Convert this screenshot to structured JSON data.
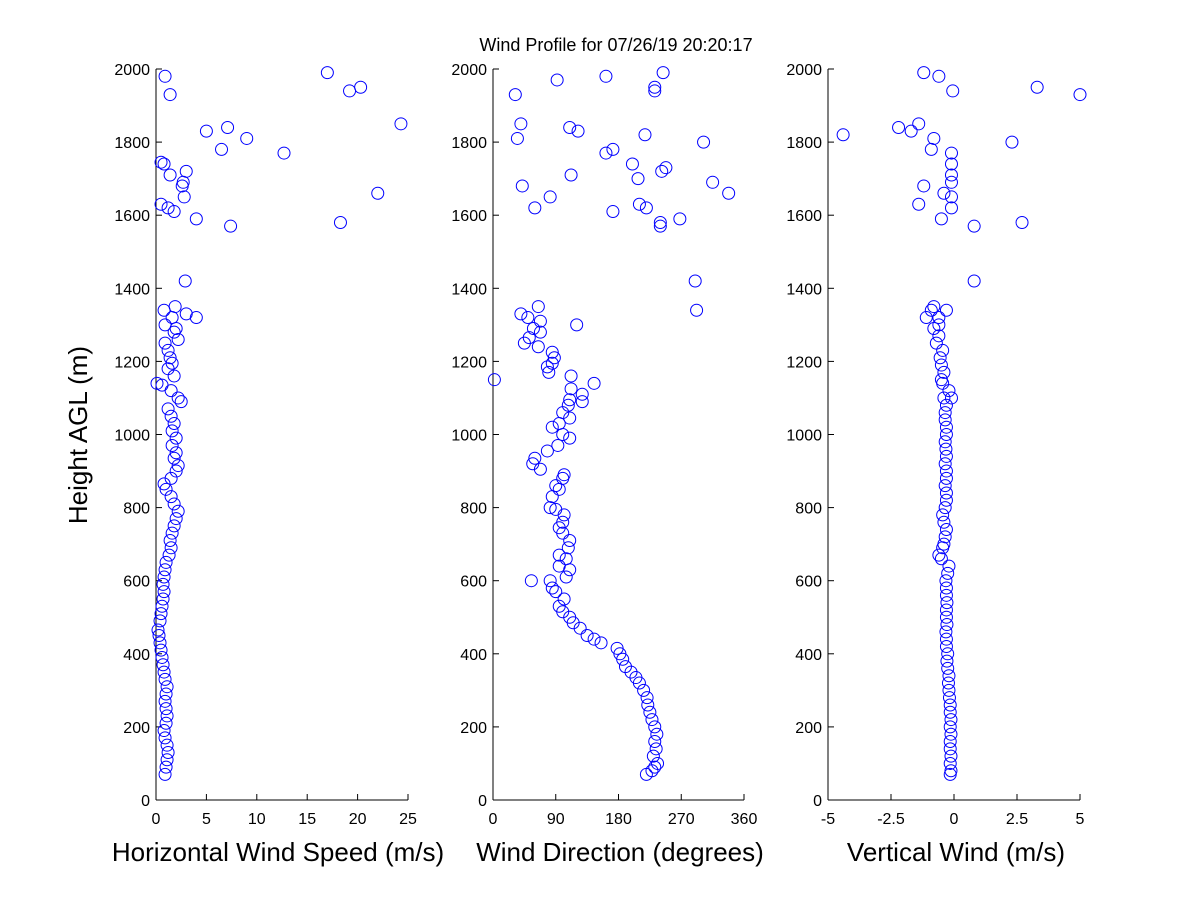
{
  "figure": {
    "title": "Wind Profile for  07/26/19 20:20:17",
    "marker_color": "#0000ff"
  },
  "chart_data": [
    {
      "type": "scatter",
      "xlabel": "Horizontal Wind Speed (m/s)",
      "ylabel": "Height AGL (m)",
      "xlim": [
        0,
        25
      ],
      "ylim": [
        0,
        2000
      ],
      "xticks": [
        0,
        5,
        10,
        15,
        20,
        25
      ],
      "yticks": [
        0,
        200,
        400,
        600,
        800,
        1000,
        1200,
        1400,
        1600,
        1800,
        2000
      ],
      "grid": false,
      "points": [
        [
          0.9,
          70
        ],
        [
          1.0,
          90
        ],
        [
          1.1,
          110
        ],
        [
          1.2,
          130
        ],
        [
          1.1,
          150
        ],
        [
          0.9,
          170
        ],
        [
          0.8,
          190
        ],
        [
          1.0,
          210
        ],
        [
          1.1,
          230
        ],
        [
          1.0,
          250
        ],
        [
          0.9,
          270
        ],
        [
          1.0,
          290
        ],
        [
          1.1,
          310
        ],
        [
          0.9,
          330
        ],
        [
          0.8,
          350
        ],
        [
          0.7,
          370
        ],
        [
          0.6,
          390
        ],
        [
          0.5,
          410
        ],
        [
          0.4,
          430
        ],
        [
          0.3,
          450
        ],
        [
          0.2,
          465
        ],
        [
          0.4,
          490
        ],
        [
          0.5,
          510
        ],
        [
          0.6,
          530
        ],
        [
          0.7,
          550
        ],
        [
          0.8,
          570
        ],
        [
          0.7,
          590
        ],
        [
          0.8,
          610
        ],
        [
          0.9,
          630
        ],
        [
          1.0,
          650
        ],
        [
          1.3,
          670
        ],
        [
          1.5,
          690
        ],
        [
          1.4,
          710
        ],
        [
          1.6,
          730
        ],
        [
          1.8,
          750
        ],
        [
          2.0,
          770
        ],
        [
          2.2,
          790
        ],
        [
          1.8,
          810
        ],
        [
          1.5,
          830
        ],
        [
          1.0,
          850
        ],
        [
          0.8,
          865
        ],
        [
          1.5,
          880
        ],
        [
          2.0,
          900
        ],
        [
          2.2,
          915
        ],
        [
          1.8,
          935
        ],
        [
          2.0,
          950
        ],
        [
          1.6,
          970
        ],
        [
          2.0,
          990
        ],
        [
          1.6,
          1010
        ],
        [
          1.8,
          1030
        ],
        [
          1.5,
          1050
        ],
        [
          1.2,
          1070
        ],
        [
          2.5,
          1090
        ],
        [
          2.2,
          1100
        ],
        [
          1.5,
          1120
        ],
        [
          0.6,
          1135
        ],
        [
          0.1,
          1140
        ],
        [
          1.8,
          1160
        ],
        [
          1.2,
          1180
        ],
        [
          1.6,
          1195
        ],
        [
          1.4,
          1210
        ],
        [
          1.2,
          1230
        ],
        [
          0.9,
          1250
        ],
        [
          2.2,
          1260
        ],
        [
          1.8,
          1280
        ],
        [
          2.0,
          1290
        ],
        [
          0.9,
          1300
        ],
        [
          3.0,
          1330
        ],
        [
          1.6,
          1320
        ],
        [
          4.0,
          1320
        ],
        [
          0.8,
          1340
        ],
        [
          1.9,
          1350
        ],
        [
          2.9,
          1420
        ],
        [
          7.4,
          1570
        ],
        [
          18.3,
          1580
        ],
        [
          4.0,
          1590
        ],
        [
          1.8,
          1610
        ],
        [
          1.2,
          1620
        ],
        [
          0.5,
          1630
        ],
        [
          2.8,
          1650
        ],
        [
          22.0,
          1660
        ],
        [
          2.6,
          1680
        ],
        [
          2.7,
          1690
        ],
        [
          1.4,
          1710
        ],
        [
          3.0,
          1720
        ],
        [
          0.8,
          1740
        ],
        [
          0.5,
          1745
        ],
        [
          12.7,
          1770
        ],
        [
          6.5,
          1780
        ],
        [
          5.0,
          1830
        ],
        [
          9.0,
          1810
        ],
        [
          7.1,
          1840
        ],
        [
          24.3,
          1850
        ],
        [
          1.4,
          1930
        ],
        [
          19.2,
          1940
        ],
        [
          20.3,
          1950
        ],
        [
          17.0,
          1990
        ],
        [
          0.9,
          1980
        ]
      ]
    },
    {
      "type": "scatter",
      "xlabel": "Wind Direction (degrees)",
      "xlim": [
        0,
        360
      ],
      "ylim": [
        0,
        2000
      ],
      "xticks": [
        0,
        90,
        180,
        270,
        360
      ],
      "yticks": [
        0,
        200,
        400,
        600,
        800,
        1000,
        1200,
        1400,
        1600,
        1800,
        2000
      ],
      "grid": false,
      "points": [
        [
          220,
          70
        ],
        [
          228,
          80
        ],
        [
          232,
          90
        ],
        [
          236,
          100
        ],
        [
          230,
          120
        ],
        [
          234,
          140
        ],
        [
          232,
          160
        ],
        [
          235,
          180
        ],
        [
          232,
          200
        ],
        [
          228,
          220
        ],
        [
          225,
          240
        ],
        [
          222,
          260
        ],
        [
          221,
          280
        ],
        [
          216,
          300
        ],
        [
          210,
          320
        ],
        [
          205,
          335
        ],
        [
          198,
          350
        ],
        [
          190,
          365
        ],
        [
          186,
          385
        ],
        [
          182,
          400
        ],
        [
          178,
          415
        ],
        [
          145,
          440
        ],
        [
          155,
          430
        ],
        [
          135,
          450
        ],
        [
          125,
          470
        ],
        [
          115,
          485
        ],
        [
          110,
          500
        ],
        [
          100,
          515
        ],
        [
          95,
          530
        ],
        [
          102,
          550
        ],
        [
          90,
          570
        ],
        [
          85,
          580
        ],
        [
          82,
          600
        ],
        [
          55,
          600
        ],
        [
          105,
          610
        ],
        [
          110,
          630
        ],
        [
          95,
          640
        ],
        [
          105,
          660
        ],
        [
          95,
          670
        ],
        [
          108,
          690
        ],
        [
          110,
          710
        ],
        [
          100,
          730
        ],
        [
          95,
          745
        ],
        [
          100,
          760
        ],
        [
          102,
          780
        ],
        [
          90,
          795
        ],
        [
          82,
          800
        ],
        [
          85,
          830
        ],
        [
          95,
          850
        ],
        [
          90,
          860
        ],
        [
          100,
          880
        ],
        [
          102,
          890
        ],
        [
          68,
          905
        ],
        [
          57,
          920
        ],
        [
          60,
          935
        ],
        [
          78,
          955
        ],
        [
          93,
          970
        ],
        [
          110,
          990
        ],
        [
          100,
          1000
        ],
        [
          85,
          1020
        ],
        [
          95,
          1030
        ],
        [
          110,
          1045
        ],
        [
          100,
          1060
        ],
        [
          108,
          1080
        ],
        [
          110,
          1095
        ],
        [
          128,
          1090
        ],
        [
          128,
          1110
        ],
        [
          145,
          1140
        ],
        [
          112,
          1125
        ],
        [
          112,
          1160
        ],
        [
          2,
          1150
        ],
        [
          80,
          1170
        ],
        [
          78,
          1185
        ],
        [
          85,
          1195
        ],
        [
          88,
          1210
        ],
        [
          85,
          1225
        ],
        [
          65,
          1240
        ],
        [
          45,
          1250
        ],
        [
          52,
          1265
        ],
        [
          68,
          1280
        ],
        [
          58,
          1290
        ],
        [
          120,
          1300
        ],
        [
          68,
          1310
        ],
        [
          50,
          1320
        ],
        [
          40,
          1330
        ],
        [
          65,
          1350
        ],
        [
          290,
          1420
        ],
        [
          292,
          1340
        ],
        [
          240,
          1570
        ],
        [
          240,
          1580
        ],
        [
          60,
          1620
        ],
        [
          268,
          1590
        ],
        [
          172,
          1610
        ],
        [
          220,
          1620
        ],
        [
          210,
          1630
        ],
        [
          82,
          1650
        ],
        [
          338,
          1660
        ],
        [
          42,
          1680
        ],
        [
          315,
          1690
        ],
        [
          208,
          1700
        ],
        [
          112,
          1710
        ],
        [
          242,
          1720
        ],
        [
          248,
          1730
        ],
        [
          200,
          1740
        ],
        [
          162,
          1770
        ],
        [
          172,
          1780
        ],
        [
          302,
          1800
        ],
        [
          35,
          1810
        ],
        [
          40,
          1850
        ],
        [
          218,
          1820
        ],
        [
          110,
          1840
        ],
        [
          122,
          1830
        ],
        [
          32,
          1930
        ],
        [
          232,
          1940
        ],
        [
          232,
          1950
        ],
        [
          92,
          1970
        ],
        [
          162,
          1980
        ],
        [
          244,
          1990
        ]
      ]
    },
    {
      "type": "scatter",
      "xlabel": "Vertical Wind (m/s)",
      "xlim": [
        -5,
        5
      ],
      "ylim": [
        0,
        2000
      ],
      "xticks": [
        -5,
        -2.5,
        0,
        2.5,
        5
      ],
      "xtick_labels": [
        "-5",
        "-2.5",
        "0",
        "2.5",
        "5"
      ],
      "yticks": [
        0,
        200,
        400,
        600,
        800,
        1000,
        1200,
        1400,
        1600,
        1800,
        2000
      ],
      "grid": false,
      "points": [
        [
          -0.15,
          70
        ],
        [
          -0.12,
          80
        ],
        [
          -0.15,
          100
        ],
        [
          -0.12,
          120
        ],
        [
          -0.15,
          140
        ],
        [
          -0.15,
          160
        ],
        [
          -0.12,
          180
        ],
        [
          -0.15,
          200
        ],
        [
          -0.12,
          220
        ],
        [
          -0.15,
          240
        ],
        [
          -0.15,
          260
        ],
        [
          -0.18,
          280
        ],
        [
          -0.2,
          300
        ],
        [
          -0.22,
          320
        ],
        [
          -0.2,
          340
        ],
        [
          -0.25,
          360
        ],
        [
          -0.28,
          380
        ],
        [
          -0.25,
          400
        ],
        [
          -0.3,
          420
        ],
        [
          -0.3,
          440
        ],
        [
          -0.32,
          460
        ],
        [
          -0.28,
          480
        ],
        [
          -0.3,
          500
        ],
        [
          -0.3,
          520
        ],
        [
          -0.28,
          540
        ],
        [
          -0.3,
          560
        ],
        [
          -0.3,
          580
        ],
        [
          -0.32,
          600
        ],
        [
          -0.25,
          620
        ],
        [
          -0.2,
          640
        ],
        [
          -0.5,
          660
        ],
        [
          -0.6,
          670
        ],
        [
          -0.45,
          690
        ],
        [
          -0.4,
          700
        ],
        [
          -0.35,
          720
        ],
        [
          -0.3,
          740
        ],
        [
          -0.4,
          760
        ],
        [
          -0.45,
          780
        ],
        [
          -0.35,
          800
        ],
        [
          -0.3,
          820
        ],
        [
          -0.3,
          840
        ],
        [
          -0.35,
          860
        ],
        [
          -0.3,
          880
        ],
        [
          -0.3,
          900
        ],
        [
          -0.35,
          920
        ],
        [
          -0.3,
          940
        ],
        [
          -0.32,
          960
        ],
        [
          -0.35,
          980
        ],
        [
          -0.3,
          1000
        ],
        [
          -0.3,
          1020
        ],
        [
          -0.35,
          1040
        ],
        [
          -0.35,
          1060
        ],
        [
          -0.3,
          1080
        ],
        [
          -0.4,
          1100
        ],
        [
          -0.1,
          1100
        ],
        [
          -0.2,
          1120
        ],
        [
          -0.45,
          1140
        ],
        [
          -0.5,
          1150
        ],
        [
          -0.4,
          1170
        ],
        [
          -0.5,
          1190
        ],
        [
          -0.55,
          1210
        ],
        [
          -0.45,
          1230
        ],
        [
          -0.7,
          1250
        ],
        [
          -0.6,
          1270
        ],
        [
          -0.8,
          1290
        ],
        [
          -0.6,
          1300
        ],
        [
          -0.6,
          1320
        ],
        [
          -1.1,
          1320
        ],
        [
          -0.9,
          1340
        ],
        [
          -0.8,
          1350
        ],
        [
          -0.3,
          1340
        ],
        [
          0.8,
          1420
        ],
        [
          0.8,
          1570
        ],
        [
          2.7,
          1580
        ],
        [
          -0.5,
          1590
        ],
        [
          -0.1,
          1620
        ],
        [
          -1.4,
          1630
        ],
        [
          -0.1,
          1650
        ],
        [
          -0.4,
          1660
        ],
        [
          -1.2,
          1680
        ],
        [
          -0.1,
          1690
        ],
        [
          -0.1,
          1710
        ],
        [
          -0.1,
          1740
        ],
        [
          -0.1,
          1770
        ],
        [
          -0.9,
          1780
        ],
        [
          -0.8,
          1810
        ],
        [
          2.3,
          1800
        ],
        [
          -4.4,
          1820
        ],
        [
          -1.7,
          1830
        ],
        [
          -2.2,
          1840
        ],
        [
          -1.4,
          1850
        ],
        [
          3.3,
          1950
        ],
        [
          5.0,
          1930
        ],
        [
          -0.05,
          1940
        ],
        [
          -0.6,
          1980
        ],
        [
          -1.2,
          1990
        ]
      ]
    }
  ]
}
